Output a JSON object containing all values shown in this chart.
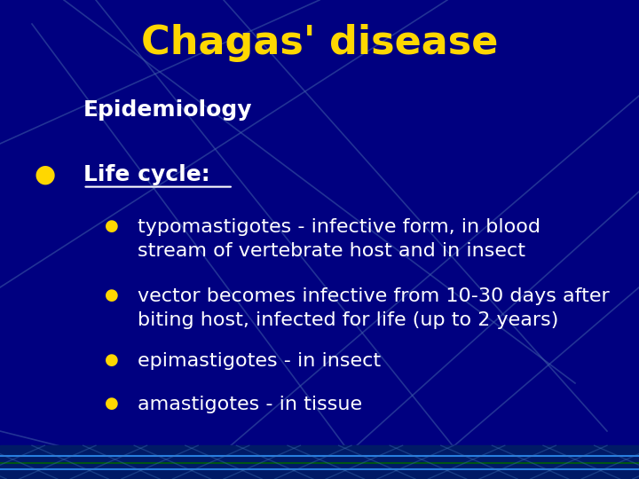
{
  "title": "Chagas' disease",
  "title_color": "#FFD700",
  "title_fontsize": 32,
  "subtitle": "Epidemiology",
  "subtitle_color": "#FFFFFF",
  "subtitle_fontsize": 18,
  "bg_color": "#000080",
  "section_label": "Life cycle:",
  "section_color": "#FFFFFF",
  "section_fontsize": 18,
  "bullet_color": "#FFD700",
  "bullet_text_color": "#FFFFFF",
  "bullet_fontsize": 16,
  "bullets": [
    "typomastigotes - infective form, in blood\nstream of vertebrate host and in insect",
    "vector becomes infective from 10-30 days after\nbiting host, infected for life (up to 2 years)",
    "epimastigotes - in insect",
    "amastigotes - in tissue"
  ],
  "line_color": "#4466AA",
  "figwidth": 7.2,
  "figheight": 5.4,
  "dpi": 100
}
